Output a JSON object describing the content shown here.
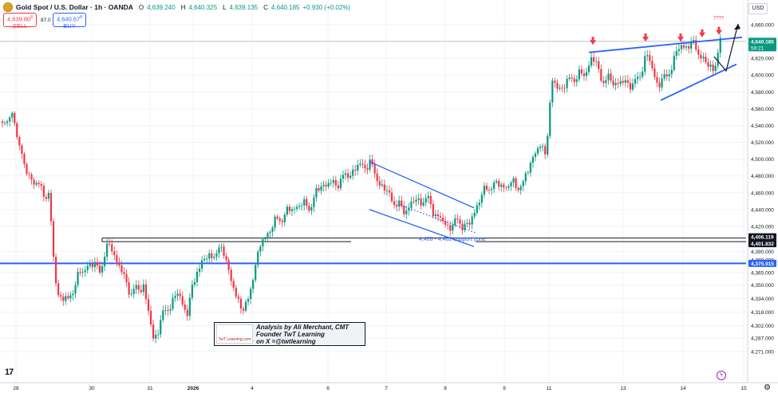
{
  "header": {
    "title": "Gold Spot / U.S. Dollar · 1h · OANDA",
    "open_label": "O",
    "open": "4,639.240",
    "high_label": "H",
    "high": "4,640.325",
    "low_label": "L",
    "low": "4,639.135",
    "close_label": "C",
    "close": "4,640.185",
    "change": "+0.930 (+0.02%)"
  },
  "trade": {
    "sell_price": "4,639.80",
    "sell_sup": "8",
    "sell_label": "SELL",
    "spread": "87.0",
    "buy_price": "4,640.67",
    "buy_sup": "8",
    "buy_label": "BUY"
  },
  "currency": "USD",
  "chart_data": {
    "type": "candlestick",
    "ylim": [
      4268,
      4667
    ],
    "x_tick_labels": [
      "28",
      "30",
      "31",
      "2026",
      "4",
      "6",
      "7",
      "8",
      "9",
      "11",
      "13",
      "14",
      "15"
    ],
    "y_tick_labels": [
      "4,660.000",
      "4,640.000",
      "4,620.000",
      "4,600.000",
      "4,580.000",
      "4,560.000",
      "4,540.000",
      "4,520.000",
      "4,500.000",
      "4,480.000",
      "4,460.000",
      "4,440.000",
      "4,420.000",
      "4,390.000",
      "4,380.000",
      "4,365.000",
      "4,350.000",
      "4,334.000",
      "4,318.000",
      "4,302.000",
      "4,287.000",
      "4,271.000"
    ],
    "y_tick_values": [
      4660,
      4640,
      4620,
      4600,
      4580,
      4560,
      4540,
      4520,
      4500,
      4480,
      4460,
      4440,
      4420,
      4390,
      4380,
      4365,
      4350,
      4334,
      4318,
      4302,
      4287,
      4271
    ],
    "price_tags": [
      {
        "label": "4,640.185",
        "sub": "59:21",
        "color": "#089981",
        "value": 4640.185
      },
      {
        "label": "4,406.119",
        "color": "#131722",
        "value": 4406.119
      },
      {
        "label": "4,401.832",
        "color": "#131722",
        "value": 4401.832
      },
      {
        "label": "4,375.915",
        "color": "#2962ff",
        "value": 4375.915
      }
    ],
    "support_zone_label": "4,406 - 4,402 support zone",
    "question_marks": "????",
    "anchors": [
      {
        "x": 2,
        "y": 4545
      },
      {
        "x": 18,
        "y": 4548
      },
      {
        "x": 30,
        "y": 4490
      },
      {
        "x": 45,
        "y": 4470
      },
      {
        "x": 62,
        "y": 4455
      },
      {
        "x": 66,
        "y": 4390
      },
      {
        "x": 72,
        "y": 4340
      },
      {
        "x": 85,
        "y": 4330
      },
      {
        "x": 95,
        "y": 4355
      },
      {
        "x": 110,
        "y": 4375
      },
      {
        "x": 125,
        "y": 4370
      },
      {
        "x": 138,
        "y": 4400
      },
      {
        "x": 150,
        "y": 4370
      },
      {
        "x": 165,
        "y": 4340
      },
      {
        "x": 180,
        "y": 4350
      },
      {
        "x": 192,
        "y": 4285
      },
      {
        "x": 205,
        "y": 4315
      },
      {
        "x": 222,
        "y": 4340
      },
      {
        "x": 235,
        "y": 4318
      },
      {
        "x": 247,
        "y": 4370
      },
      {
        "x": 262,
        "y": 4385
      },
      {
        "x": 282,
        "y": 4392
      },
      {
        "x": 290,
        "y": 4350
      },
      {
        "x": 304,
        "y": 4322
      },
      {
        "x": 312,
        "y": 4330
      },
      {
        "x": 318,
        "y": 4370
      },
      {
        "x": 330,
        "y": 4405
      },
      {
        "x": 345,
        "y": 4425
      },
      {
        "x": 358,
        "y": 4435
      },
      {
        "x": 372,
        "y": 4445
      },
      {
        "x": 390,
        "y": 4445
      },
      {
        "x": 402,
        "y": 4470
      },
      {
        "x": 418,
        "y": 4470
      },
      {
        "x": 432,
        "y": 4478
      },
      {
        "x": 447,
        "y": 4490
      },
      {
        "x": 463,
        "y": 4495
      },
      {
        "x": 478,
        "y": 4468
      },
      {
        "x": 492,
        "y": 4452
      },
      {
        "x": 505,
        "y": 4438
      },
      {
        "x": 520,
        "y": 4450
      },
      {
        "x": 535,
        "y": 4452
      },
      {
        "x": 548,
        "y": 4432
      },
      {
        "x": 560,
        "y": 4420
      },
      {
        "x": 575,
        "y": 4425
      },
      {
        "x": 588,
        "y": 4420
      },
      {
        "x": 600,
        "y": 4452
      },
      {
        "x": 615,
        "y": 4470
      },
      {
        "x": 630,
        "y": 4468
      },
      {
        "x": 645,
        "y": 4470
      },
      {
        "x": 655,
        "y": 4468
      },
      {
        "x": 670,
        "y": 4510
      },
      {
        "x": 684,
        "y": 4512
      },
      {
        "x": 692,
        "y": 4590
      },
      {
        "x": 705,
        "y": 4585
      },
      {
        "x": 718,
        "y": 4598
      },
      {
        "x": 732,
        "y": 4600
      },
      {
        "x": 742,
        "y": 4622
      },
      {
        "x": 755,
        "y": 4595
      },
      {
        "x": 770,
        "y": 4592
      },
      {
        "x": 785,
        "y": 4590
      },
      {
        "x": 800,
        "y": 4592
      },
      {
        "x": 810,
        "y": 4628
      },
      {
        "x": 822,
        "y": 4592
      },
      {
        "x": 835,
        "y": 4595
      },
      {
        "x": 848,
        "y": 4628
      },
      {
        "x": 860,
        "y": 4637
      },
      {
        "x": 872,
        "y": 4634
      },
      {
        "x": 885,
        "y": 4612
      },
      {
        "x": 895,
        "y": 4608
      },
      {
        "x": 903,
        "y": 4640
      }
    ]
  },
  "annotation": {
    "logo_text": "TwT Learning.com",
    "line1": "Analysis by Ali Merchant, CMT",
    "line2": "Founder TwT Learning",
    "line3": "on X =@twtlearning"
  },
  "colors": {
    "up": "#089981",
    "down": "#f23645",
    "channel": "#2962ff",
    "support_line": "#2962ff",
    "resistance": "#131722",
    "current_line": "#b2b5be"
  },
  "icons": [
    "tradingview-logo-icon",
    "settings-gear-icon",
    "lightning-icon",
    "gold-coin-icon"
  ]
}
